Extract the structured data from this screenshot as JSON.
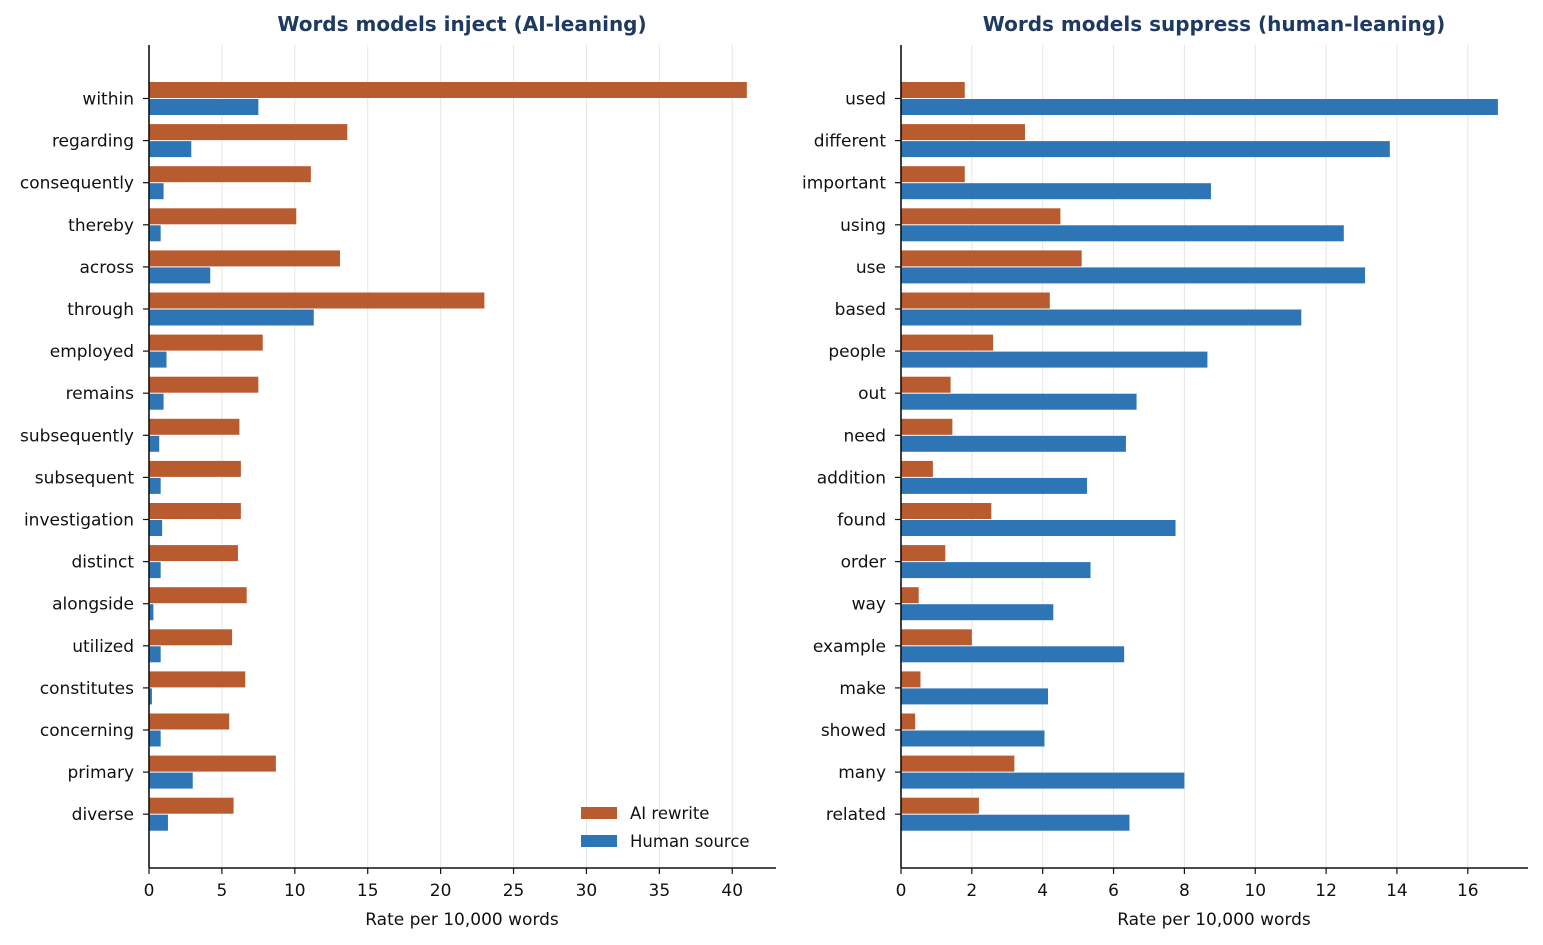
{
  "colors": {
    "ai": "#b85c2f",
    "human": "#2e75b6",
    "grid": "#e6e6e6",
    "axis": "#111111",
    "title": "#1f3a5f"
  },
  "legend": {
    "placement": "bottom-right",
    "ai_label": "AI rewrite",
    "human_label": "Human source"
  },
  "chart_data": [
    {
      "type": "bar",
      "orientation": "horizontal",
      "title": "Words models inject (AI-leaning)",
      "xlabel": "Rate per 10,000 words",
      "ylabel": "",
      "xlim": [
        0,
        43
      ],
      "xticks": [
        0,
        5,
        10,
        15,
        20,
        25,
        30,
        35,
        40
      ],
      "grid": "x",
      "categories": [
        "within",
        "regarding",
        "consequently",
        "thereby",
        "across",
        "through",
        "employed",
        "remains",
        "subsequently",
        "subsequent",
        "investigation",
        "distinct",
        "alongside",
        "utilized",
        "constitutes",
        "concerning",
        "primary",
        "diverse"
      ],
      "series": [
        {
          "name": "AI rewrite",
          "values": [
            41.0,
            13.6,
            11.1,
            10.1,
            13.1,
            23.0,
            7.8,
            7.5,
            6.2,
            6.3,
            6.3,
            6.1,
            6.7,
            5.7,
            6.6,
            5.5,
            8.7,
            5.8
          ]
        },
        {
          "name": "Human source",
          "values": [
            7.5,
            2.9,
            1.0,
            0.8,
            4.2,
            11.3,
            1.2,
            1.0,
            0.7,
            0.8,
            0.9,
            0.8,
            0.3,
            0.8,
            0.2,
            0.8,
            3.0,
            1.3
          ]
        }
      ],
      "legend": true
    },
    {
      "type": "bar",
      "orientation": "horizontal",
      "title": "Words models suppress (human-leaning)",
      "xlabel": "Rate per 10,000 words",
      "ylabel": "",
      "xlim": [
        0,
        17.7
      ],
      "xticks": [
        0,
        2,
        4,
        6,
        8,
        10,
        12,
        14,
        16
      ],
      "grid": "x",
      "categories": [
        "used",
        "different",
        "important",
        "using",
        "use",
        "based",
        "people",
        "out",
        "need",
        "addition",
        "found",
        "order",
        "way",
        "example",
        "make",
        "showed",
        "many",
        "related"
      ],
      "series": [
        {
          "name": "AI rewrite",
          "values": [
            1.8,
            3.5,
            1.8,
            4.5,
            5.1,
            4.2,
            2.6,
            1.4,
            1.45,
            0.9,
            2.55,
            1.25,
            0.5,
            2.0,
            0.55,
            0.4,
            3.2,
            2.2
          ]
        },
        {
          "name": "Human source",
          "values": [
            16.85,
            13.8,
            8.75,
            12.5,
            13.1,
            11.3,
            8.65,
            6.65,
            6.35,
            5.25,
            7.75,
            5.35,
            4.3,
            6.3,
            4.15,
            4.05,
            8.0,
            6.45
          ]
        }
      ],
      "legend": false
    }
  ]
}
